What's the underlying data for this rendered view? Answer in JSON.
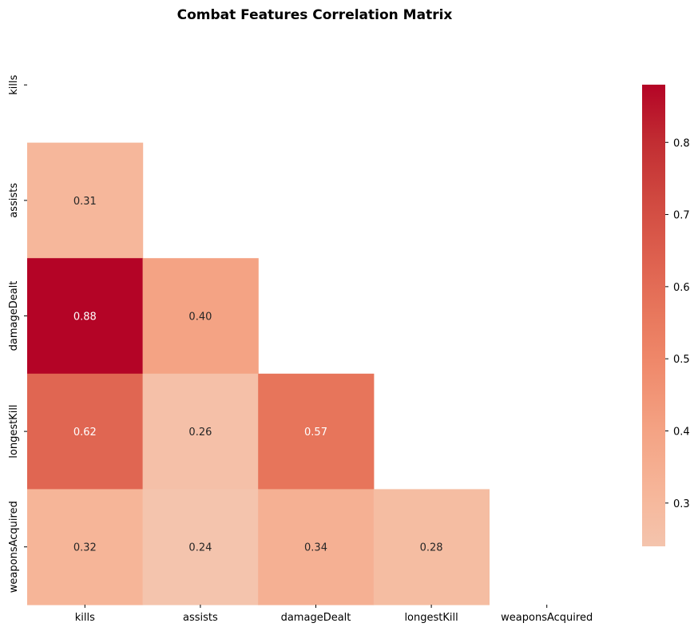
{
  "chart_data": {
    "type": "heatmap",
    "title": "Combat Features Correlation Matrix",
    "xlabel": "",
    "ylabel": "",
    "variables": [
      "kills",
      "assists",
      "damageDealt",
      "longestKill",
      "weaponsAcquired"
    ],
    "mask": "upper-triangle-including-diagonal",
    "cells": [
      {
        "row": "assists",
        "col": "kills",
        "value": 0.31,
        "label": "0.31"
      },
      {
        "row": "damageDealt",
        "col": "kills",
        "value": 0.88,
        "label": "0.88"
      },
      {
        "row": "damageDealt",
        "col": "assists",
        "value": 0.4,
        "label": "0.40"
      },
      {
        "row": "longestKill",
        "col": "kills",
        "value": 0.62,
        "label": "0.62"
      },
      {
        "row": "longestKill",
        "col": "assists",
        "value": 0.26,
        "label": "0.26"
      },
      {
        "row": "longestKill",
        "col": "damageDealt",
        "value": 0.57,
        "label": "0.57"
      },
      {
        "row": "weaponsAcquired",
        "col": "kills",
        "value": 0.32,
        "label": "0.32"
      },
      {
        "row": "weaponsAcquired",
        "col": "assists",
        "value": 0.24,
        "label": "0.24"
      },
      {
        "row": "weaponsAcquired",
        "col": "damageDealt",
        "value": 0.34,
        "label": "0.34"
      },
      {
        "row": "weaponsAcquired",
        "col": "longestKill",
        "value": 0.28,
        "label": "0.28"
      }
    ],
    "colormap": "coolwarm",
    "color_range": [
      0.24,
      0.88
    ],
    "colorbar": {
      "placement": "right",
      "ticks": [
        0.3,
        0.4,
        0.5,
        0.6,
        0.7,
        0.8
      ],
      "tick_labels": [
        "0.3",
        "0.4",
        "0.5",
        "0.6",
        "0.7",
        "0.8"
      ]
    },
    "grid": false
  }
}
